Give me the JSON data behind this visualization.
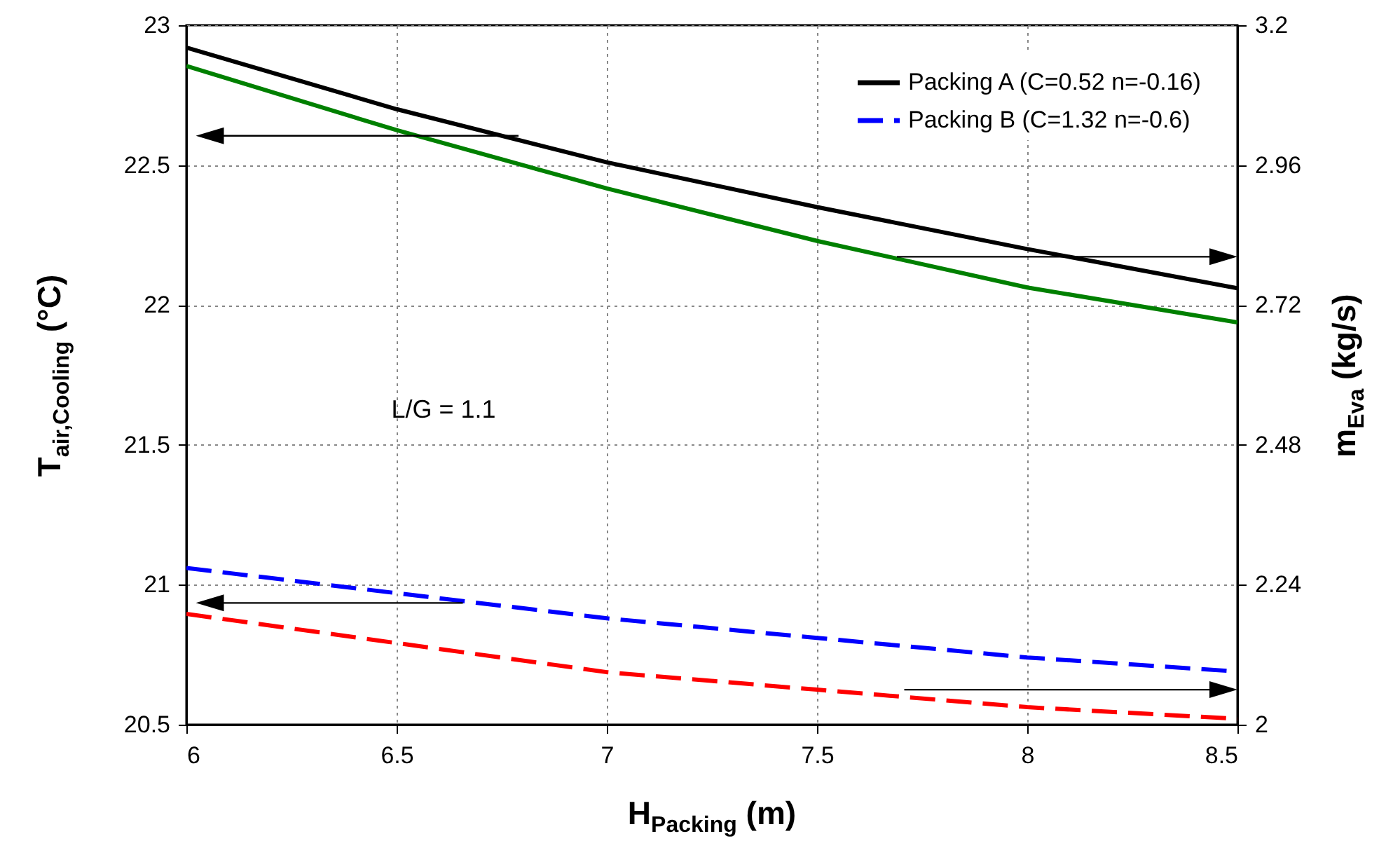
{
  "chart_data": {
    "type": "line",
    "xlabel": "H$_{Packing}$ (m)",
    "ylabel": "T$_{air,Cooling}$ (°C)",
    "y2label": "m$_{Eva}$ (kg/s)",
    "x": [
      6,
      6.5,
      7,
      7.5,
      8,
      8.5
    ],
    "xlim": [
      6,
      8.5
    ],
    "xticks": [
      6,
      6.5,
      7,
      7.5,
      8,
      8.5
    ],
    "ylim": [
      20.5,
      23
    ],
    "yticks": [
      20.5,
      21,
      21.5,
      22,
      22.5,
      23
    ],
    "y2lim": [
      2,
      3.2
    ],
    "y2ticks": [
      2,
      2.24,
      2.48,
      2.72,
      2.96,
      3.2
    ],
    "grid": true,
    "legend": "top right",
    "marker": "none",
    "annotations": [
      "L/G = 1.1"
    ],
    "series": [
      {
        "name": "Packing A (C=0.52 n=-0.16)",
        "color": "#000000",
        "line_style": "solid",
        "values": [
          22.92,
          22.7,
          22.51,
          22.35,
          22.2,
          22.06
        ]
      },
      {
        "name": "Packing B (C=1.32 n=-0.6)",
        "color": "#0000ff",
        "line_style": "dashed",
        "values": [
          21.06,
          20.97,
          20.88,
          20.81,
          20.74,
          20.69
        ]
      },
      {
        "color": "#008000",
        "line_style": "solid",
        "axis": "y2",
        "values": [
          3.13,
          3.02,
          2.92,
          2.83,
          2.75,
          2.69
        ]
      },
      {
        "color": "#ff0000",
        "line_style": "dashed",
        "axis": "y2",
        "values": [
          2.19,
          2.14,
          2.09,
          2.06,
          2.03,
          2.01
        ]
      }
    ]
  }
}
